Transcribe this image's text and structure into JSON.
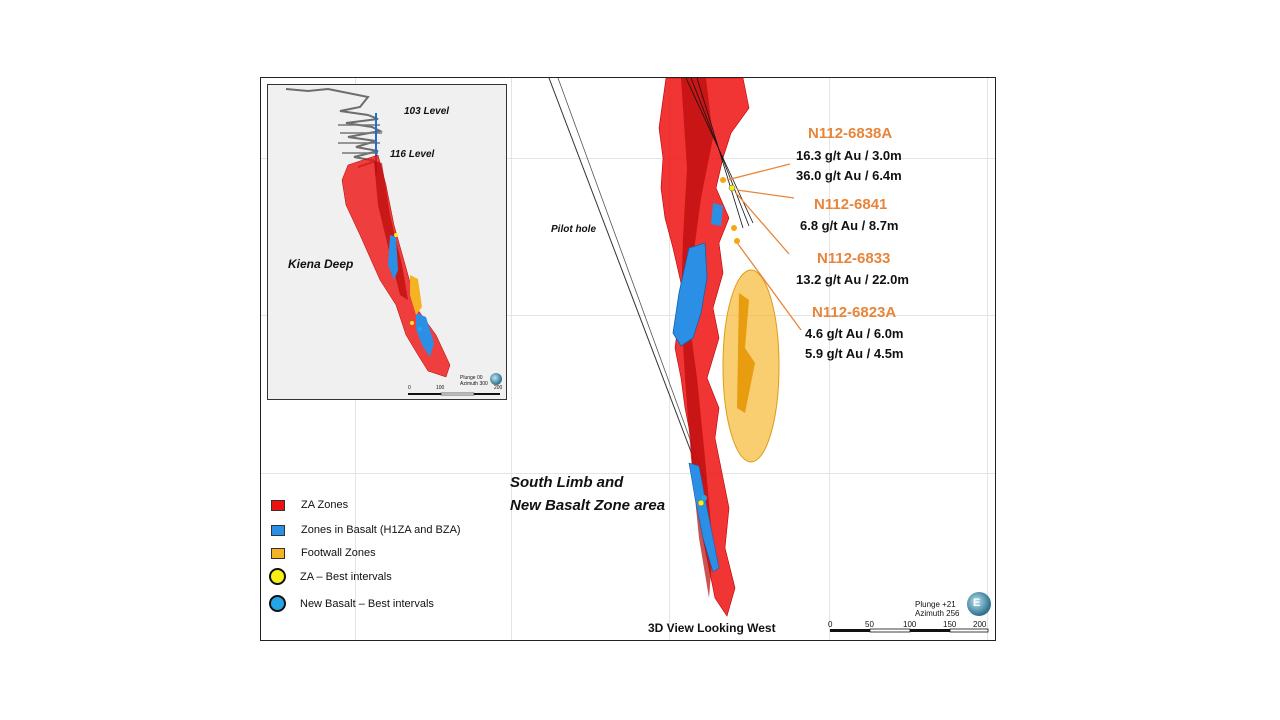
{
  "main": {
    "view_label": "3D View  Looking West",
    "plunge_text": "Plunge +21",
    "azimuth_text": "Azimuth 256",
    "compass_letter": "E",
    "pilot_hole_label": "Pilot hole",
    "area_label_line1": "South Limb and",
    "area_label_line2": "New Basalt  Zone area",
    "scale_ticks": [
      "0",
      "50",
      "100",
      "150",
      "200"
    ]
  },
  "drill_holes": [
    {
      "name": "N112-6838A",
      "intervals": [
        "16.3 g/t Au / 3.0m",
        "36.0 g/t Au / 6.4m"
      ]
    },
    {
      "name": "N112-6841",
      "intervals": [
        "6.8 g/t Au / 8.7m"
      ]
    },
    {
      "name": "N112-6833",
      "intervals": [
        "13.2 g/t Au / 22.0m"
      ]
    },
    {
      "name": "N112-6823A",
      "intervals": [
        "4.6 g/t Au / 6.0m",
        "5.9 g/t Au / 4.5m"
      ]
    }
  ],
  "inset": {
    "level_103": "103 Level",
    "level_116": "116 Level",
    "deposit_label": "Kiena Deep",
    "plunge_text": "Plunge 00",
    "azimuth_text": "Azimuth 300",
    "scale_ticks": [
      "0",
      "100",
      "200"
    ]
  },
  "legend": [
    {
      "label": "ZA Zones",
      "color": "#ee1111",
      "shape": "square"
    },
    {
      "label": "Zones in Basalt (H1ZA and BZA)",
      "color": "#2b8fe6",
      "shape": "square"
    },
    {
      "label": "Footwall Zones",
      "color": "#f5b324",
      "shape": "square"
    },
    {
      "label": "ZA – Best intervals",
      "color": "#f7f016",
      "shape": "circle"
    },
    {
      "label": "New Basalt  – Best intervals",
      "color": "#24a6e6",
      "shape": "circle"
    }
  ],
  "colors": {
    "za_zone": "#ee1111",
    "basalt_zone": "#2b8fe6",
    "footwall_zone": "#f5b324",
    "hole_label": "#e8853a",
    "inset_background": "#f0f0f0"
  }
}
